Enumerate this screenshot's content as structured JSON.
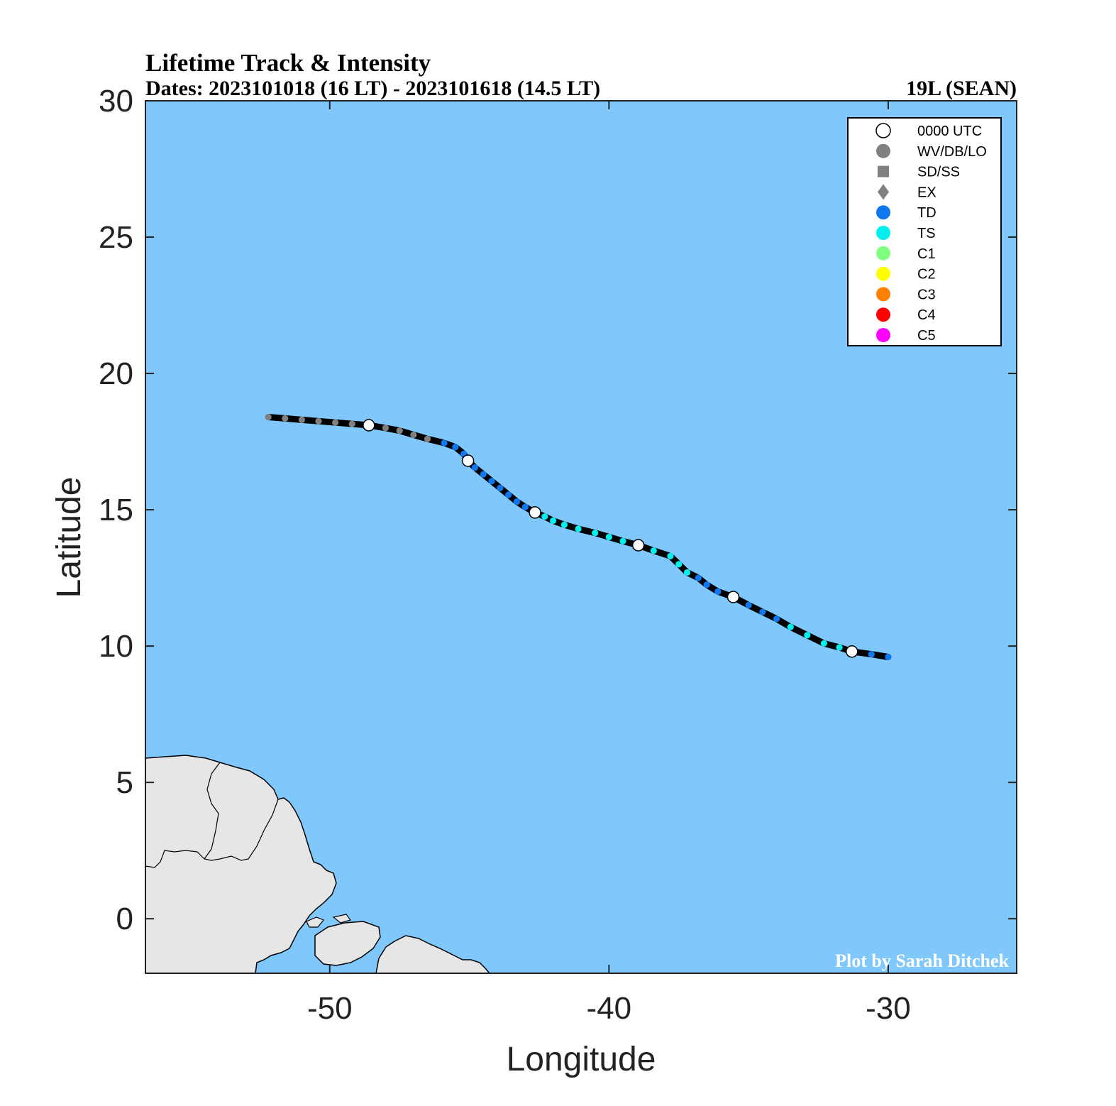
{
  "title": "Lifetime Track & Intensity",
  "dates_line": "Dates: 2023101018 (16 LT) - 2023101618 (14.5 LT)",
  "storm_id": "19L (SEAN)",
  "credit": "Plot by Sarah Ditchek",
  "colors": {
    "ocean": "#80c8fc",
    "land": "#e6e6e6",
    "track": "#000000",
    "wv_db_lo": "#808080",
    "td": "#0f78f0",
    "ts": "#00f0f0",
    "c1": "#80ff80",
    "c2": "#ffff00",
    "c3": "#ff8000",
    "c4": "#ff0000",
    "c5": "#ff00ff",
    "utc0000": "#ffffff"
  },
  "legend": [
    {
      "label": "0000 UTC",
      "symbol": "circle",
      "color": "#ffffff",
      "outline": "#000000"
    },
    {
      "label": "WV/DB/LO",
      "symbol": "circle",
      "color": "#808080"
    },
    {
      "label": "SD/SS",
      "symbol": "square",
      "color": "#808080"
    },
    {
      "label": "EX",
      "symbol": "diamond",
      "color": "#808080"
    },
    {
      "label": "TD",
      "symbol": "circle",
      "color": "#0f78f0"
    },
    {
      "label": "TS",
      "symbol": "circle",
      "color": "#00f0f0"
    },
    {
      "label": "C1",
      "symbol": "circle",
      "color": "#80ff80"
    },
    {
      "label": "C2",
      "symbol": "circle",
      "color": "#ffff00"
    },
    {
      "label": "C3",
      "symbol": "circle",
      "color": "#ff8000"
    },
    {
      "label": "C4",
      "symbol": "circle",
      "color": "#ff0000"
    },
    {
      "label": "C5",
      "symbol": "circle",
      "color": "#ff00ff"
    }
  ],
  "chart_data": {
    "type": "scatter",
    "xlabel": "Longitude",
    "ylabel": "Latitude",
    "xlim": [
      -56.6,
      -25.4
    ],
    "ylim": [
      -2,
      30
    ],
    "xticks": [
      -50,
      -40,
      -30
    ],
    "yticks": [
      0,
      5,
      10,
      15,
      20,
      25,
      30
    ],
    "legend_position": "top-right",
    "grid": false,
    "track": [
      {
        "lon": -52.2,
        "lat": 18.4,
        "type": "WV/DB/LO"
      },
      {
        "lon": -51.6,
        "lat": 18.35,
        "type": "WV/DB/LO"
      },
      {
        "lon": -51.0,
        "lat": 18.3,
        "type": "WV/DB/LO"
      },
      {
        "lon": -50.4,
        "lat": 18.25,
        "type": "WV/DB/LO"
      },
      {
        "lon": -49.8,
        "lat": 18.2,
        "type": "WV/DB/LO"
      },
      {
        "lon": -49.2,
        "lat": 18.15,
        "type": "WV/DB/LO"
      },
      {
        "lon": -48.6,
        "lat": 18.1,
        "type": "WV/DB/LO",
        "utc0000": true
      },
      {
        "lon": -48.0,
        "lat": 18.0,
        "type": "WV/DB/LO"
      },
      {
        "lon": -47.5,
        "lat": 17.9,
        "type": "WV/DB/LO"
      },
      {
        "lon": -47.0,
        "lat": 17.75,
        "type": "WV/DB/LO"
      },
      {
        "lon": -46.5,
        "lat": 17.6,
        "type": "WV/DB/LO"
      },
      {
        "lon": -45.9,
        "lat": 17.45,
        "type": "TD"
      },
      {
        "lon": -45.5,
        "lat": 17.3,
        "type": "TD"
      },
      {
        "lon": -45.2,
        "lat": 17.05,
        "type": "TD"
      },
      {
        "lon": -45.05,
        "lat": 16.8,
        "type": "TD",
        "utc0000": true
      },
      {
        "lon": -44.8,
        "lat": 16.55,
        "type": "TD"
      },
      {
        "lon": -44.5,
        "lat": 16.3,
        "type": "TD"
      },
      {
        "lon": -44.2,
        "lat": 16.05,
        "type": "TD"
      },
      {
        "lon": -43.9,
        "lat": 15.8,
        "type": "TD"
      },
      {
        "lon": -43.6,
        "lat": 15.55,
        "type": "TD"
      },
      {
        "lon": -43.3,
        "lat": 15.3,
        "type": "TD"
      },
      {
        "lon": -43.0,
        "lat": 15.1,
        "type": "TD"
      },
      {
        "lon": -42.65,
        "lat": 14.9,
        "type": "TD",
        "utc0000": true
      },
      {
        "lon": -42.3,
        "lat": 14.75,
        "type": "TS"
      },
      {
        "lon": -42.0,
        "lat": 14.6,
        "type": "TS"
      },
      {
        "lon": -41.6,
        "lat": 14.45,
        "type": "TS"
      },
      {
        "lon": -41.1,
        "lat": 14.3,
        "type": "TS"
      },
      {
        "lon": -40.5,
        "lat": 14.15,
        "type": "TS"
      },
      {
        "lon": -40.0,
        "lat": 14.0,
        "type": "TS"
      },
      {
        "lon": -39.5,
        "lat": 13.85,
        "type": "TS"
      },
      {
        "lon": -38.95,
        "lat": 13.7,
        "type": "TS",
        "utc0000": true
      },
      {
        "lon": -38.4,
        "lat": 13.5,
        "type": "TS"
      },
      {
        "lon": -37.8,
        "lat": 13.3,
        "type": "TS"
      },
      {
        "lon": -37.5,
        "lat": 13.0,
        "type": "TS"
      },
      {
        "lon": -37.2,
        "lat": 12.7,
        "type": "TS"
      },
      {
        "lon": -36.8,
        "lat": 12.5,
        "type": "TD"
      },
      {
        "lon": -36.5,
        "lat": 12.25,
        "type": "TD"
      },
      {
        "lon": -36.1,
        "lat": 12.0,
        "type": "TD"
      },
      {
        "lon": -35.55,
        "lat": 11.8,
        "type": "TD",
        "utc0000": true
      },
      {
        "lon": -35.0,
        "lat": 11.5,
        "type": "TD"
      },
      {
        "lon": -34.5,
        "lat": 11.25,
        "type": "TD"
      },
      {
        "lon": -34.0,
        "lat": 11.0,
        "type": "TD"
      },
      {
        "lon": -33.5,
        "lat": 10.7,
        "type": "TS"
      },
      {
        "lon": -32.9,
        "lat": 10.4,
        "type": "TS"
      },
      {
        "lon": -32.3,
        "lat": 10.1,
        "type": "TS"
      },
      {
        "lon": -31.75,
        "lat": 9.95,
        "type": "TS"
      },
      {
        "lon": -31.3,
        "lat": 9.8,
        "type": "TS",
        "utc0000": true
      },
      {
        "lon": -30.6,
        "lat": 9.7,
        "type": "TD"
      },
      {
        "lon": -30.0,
        "lat": 9.6,
        "type": "TD"
      }
    ]
  }
}
